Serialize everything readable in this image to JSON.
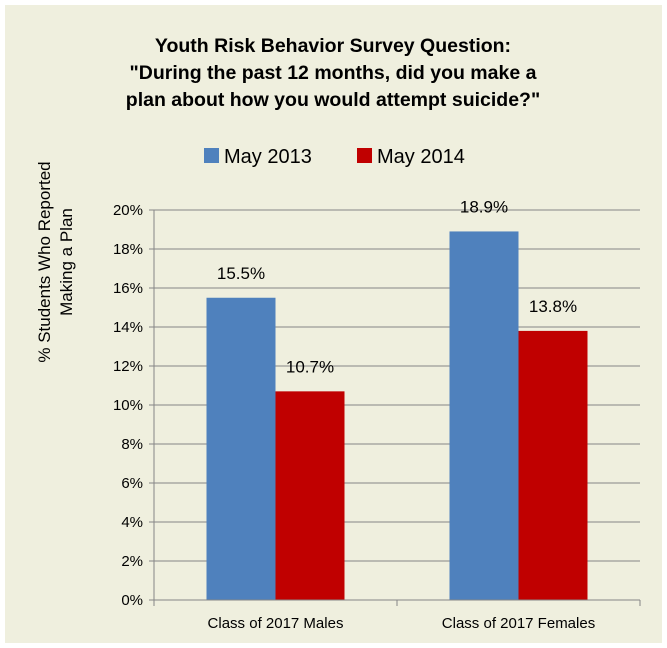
{
  "chart_data": {
    "type": "bar",
    "title_lines": [
      "Youth Risk Behavior Survey Question:",
      "\"During the past 12 months, did you make a",
      "plan about how you would attempt suicide?\""
    ],
    "ylabel_lines": [
      "% Students Who Reported",
      "Making a Plan"
    ],
    "xlabel": "",
    "categories": [
      "Class of 2017 Males",
      "Class of 2017 Females"
    ],
    "series": [
      {
        "name": "May 2013",
        "values": [
          15.5,
          18.9
        ],
        "labels": [
          "15.5%",
          "18.9%"
        ],
        "color": "#4f81bd"
      },
      {
        "name": "May 2014",
        "values": [
          10.7,
          13.8
        ],
        "labels": [
          "10.7%",
          "13.8%"
        ],
        "color": "#c00000"
      }
    ],
    "ylim": [
      0,
      20
    ],
    "yticks": [
      0,
      2,
      4,
      6,
      8,
      10,
      12,
      14,
      16,
      18,
      20
    ],
    "ytick_labels": [
      "0%",
      "2%",
      "4%",
      "6%",
      "8%",
      "10%",
      "12%",
      "14%",
      "16%",
      "18%",
      "20%"
    ],
    "grid": true,
    "legend_position": "top",
    "background_color": "#efefde",
    "gridline_color": "#868686"
  }
}
